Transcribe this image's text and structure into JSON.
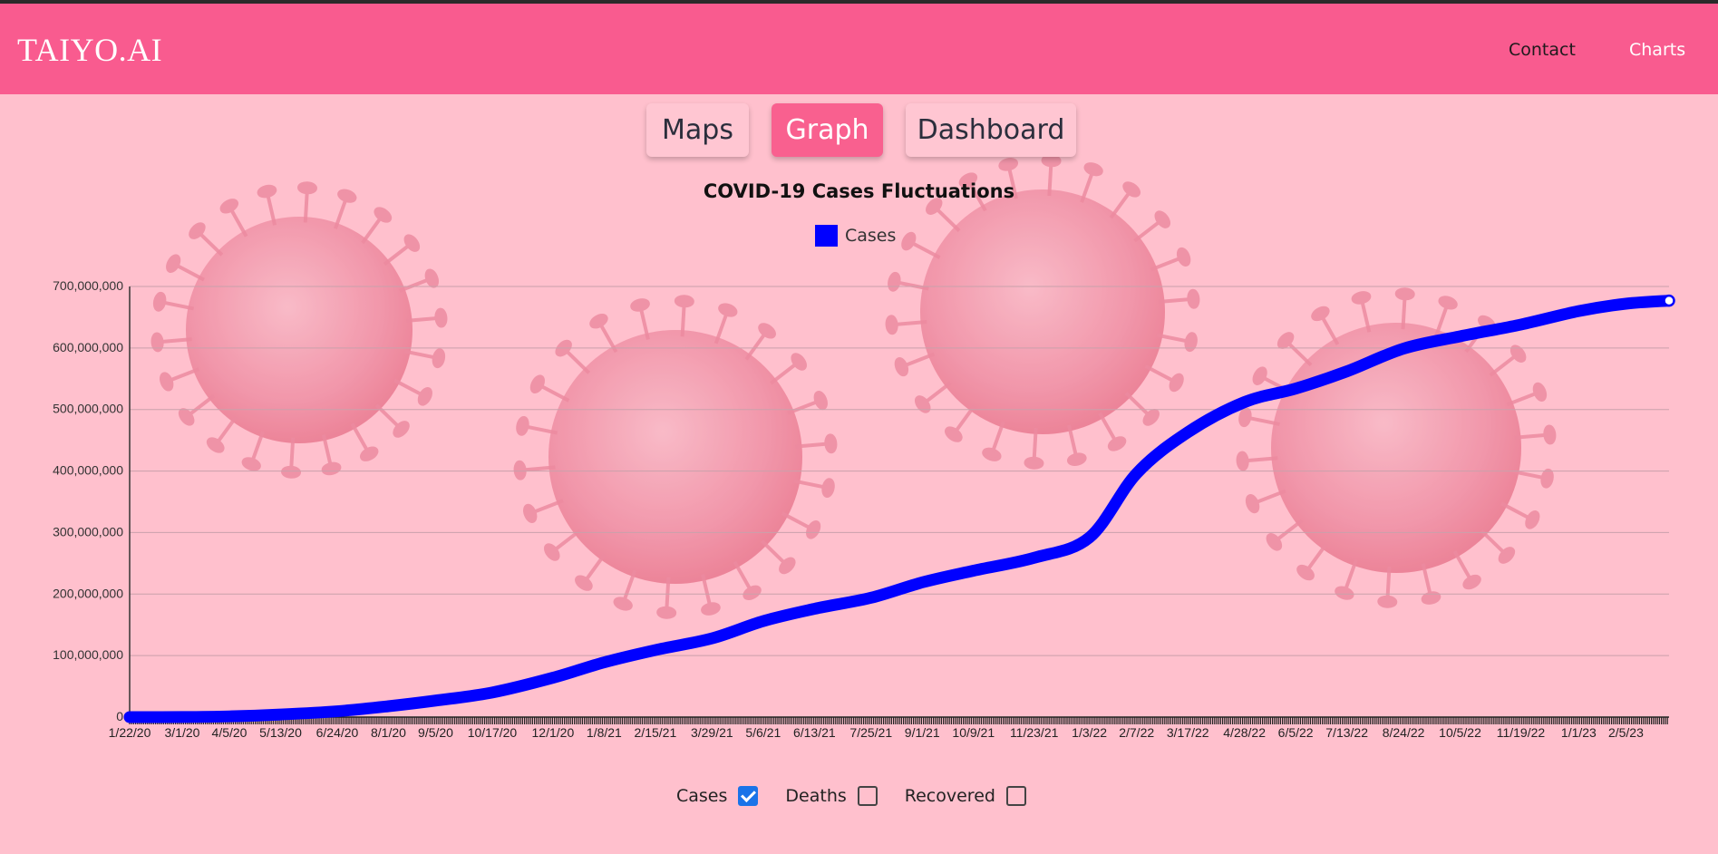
{
  "header": {
    "brand": "TAIYO.AI",
    "nav": [
      {
        "label": "Contact"
      },
      {
        "label": "Charts"
      }
    ]
  },
  "tabs": [
    {
      "label": "Maps",
      "active": false
    },
    {
      "label": "Graph",
      "active": true
    },
    {
      "label": "Dashboard",
      "active": false
    }
  ],
  "filters": [
    {
      "label": "Cases",
      "checked": true
    },
    {
      "label": "Deaths",
      "checked": false
    },
    {
      "label": "Recovered",
      "checked": false
    }
  ],
  "colors": {
    "header": "#f95b8f",
    "background": "#ffc0cd",
    "active_tab": "#f9608f",
    "series": "#0000ff"
  },
  "chart_data": {
    "type": "line",
    "title": "COVID-19 Cases Fluctuations",
    "legend_position": "top-center",
    "grid": true,
    "ylim": [
      0,
      700000000
    ],
    "y_ticks": [
      "0",
      "100,000,000",
      "200,000,000",
      "300,000,000",
      "400,000,000",
      "500,000,000",
      "600,000,000",
      "700,000,000"
    ],
    "x_tick_labels": [
      "1/22/20",
      "3/1/20",
      "4/5/20",
      "5/13/20",
      "6/24/20",
      "8/1/20",
      "9/5/20",
      "10/17/20",
      "12/1/20",
      "1/8/21",
      "2/15/21",
      "3/29/21",
      "5/6/21",
      "6/13/21",
      "7/25/21",
      "9/1/21",
      "10/9/21",
      "11/23/21",
      "1/3/22",
      "2/7/22",
      "3/17/22",
      "4/28/22",
      "6/5/22",
      "7/13/22",
      "8/24/22",
      "10/5/22",
      "11/19/22",
      "1/1/23",
      "2/5/23"
    ],
    "x_range": [
      "1/22/20",
      "3/9/23"
    ],
    "series": [
      {
        "name": "Cases",
        "color": "#0000ff",
        "points": [
          [
            "1/22/20",
            0
          ],
          [
            "3/1/20",
            100000
          ],
          [
            "4/5/20",
            1200000
          ],
          [
            "5/13/20",
            4300000
          ],
          [
            "6/24/20",
            9500000
          ],
          [
            "8/1/20",
            17700000
          ],
          [
            "9/5/20",
            26900000
          ],
          [
            "10/17/20",
            40000000
          ],
          [
            "12/1/20",
            64000000
          ],
          [
            "1/8/21",
            89000000
          ],
          [
            "2/15/21",
            109000000
          ],
          [
            "3/29/21",
            128000000
          ],
          [
            "5/6/21",
            156000000
          ],
          [
            "6/13/21",
            176000000
          ],
          [
            "7/25/21",
            194000000
          ],
          [
            "9/1/21",
            219000000
          ],
          [
            "10/9/21",
            238000000
          ],
          [
            "11/23/21",
            259000000
          ],
          [
            "1/3/22",
            292000000
          ],
          [
            "2/7/22",
            396000000
          ],
          [
            "3/17/22",
            463000000
          ],
          [
            "4/28/22",
            512000000
          ],
          [
            "6/5/22",
            534000000
          ],
          [
            "7/13/22",
            562000000
          ],
          [
            "8/24/22",
            599000000
          ],
          [
            "10/5/22",
            619000000
          ],
          [
            "11/19/22",
            638000000
          ],
          [
            "1/1/23",
            660000000
          ],
          [
            "2/5/23",
            672000000
          ],
          [
            "3/9/23",
            677000000
          ]
        ]
      }
    ]
  }
}
